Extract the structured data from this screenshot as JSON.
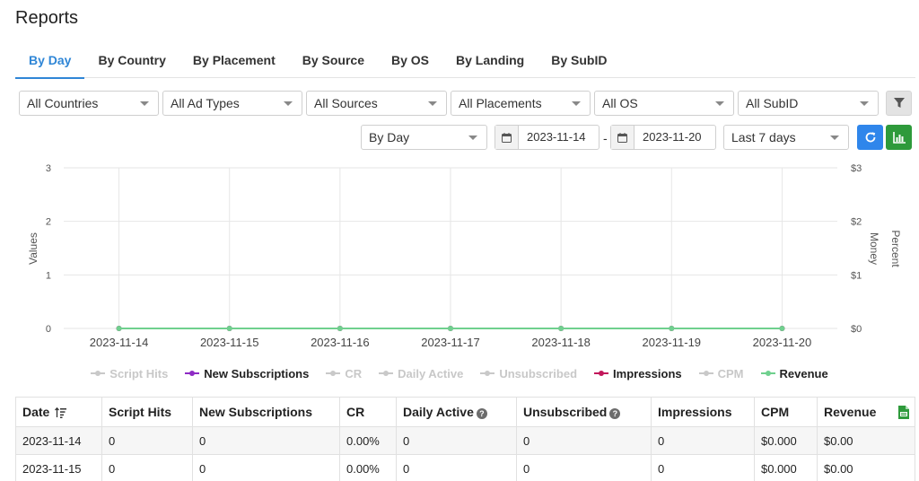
{
  "page": {
    "title": "Reports"
  },
  "tabs": [
    "By Day",
    "By Country",
    "By Placement",
    "By Source",
    "By OS",
    "By Landing",
    "By SubID"
  ],
  "active_tab": 0,
  "filters": {
    "countries": "All Countries",
    "ad_types": "All Ad Types",
    "sources": "All Sources",
    "placements": "All Placements",
    "os": "All OS",
    "subid": "All SubID"
  },
  "controls": {
    "group_by": "By Day",
    "date_from": "2023-11-14",
    "date_separator": "-",
    "date_to": "2023-11-20",
    "range": "Last 7 days"
  },
  "chart_data": {
    "type": "line",
    "categories": [
      "2023-11-14",
      "2023-11-15",
      "2023-11-16",
      "2023-11-17",
      "2023-11-18",
      "2023-11-19",
      "2023-11-20"
    ],
    "y_left": {
      "label": "Values",
      "ticks": [
        "3",
        "2",
        "1",
        "0"
      ],
      "range": [
        0,
        3
      ]
    },
    "y_right_money": {
      "label": "Money",
      "ticks": [
        "$3",
        "$2",
        "$1",
        "$0"
      ],
      "range": [
        0,
        3
      ]
    },
    "y_right_percent": {
      "label": "Percent"
    },
    "grid": true,
    "legend_position": "bottom",
    "series": [
      {
        "name": "Script Hits",
        "color": "#c9c9c9",
        "visible": false,
        "values": [
          0,
          0,
          0,
          0,
          0,
          0,
          0
        ]
      },
      {
        "name": "New Subscriptions",
        "color": "#8e2bc4",
        "visible": true,
        "values": [
          0,
          0,
          0,
          0,
          0,
          0,
          0
        ]
      },
      {
        "name": "CR",
        "color": "#c9c9c9",
        "visible": false,
        "values": [
          0,
          0,
          0,
          0,
          0,
          0,
          0
        ]
      },
      {
        "name": "Daily Active",
        "color": "#c9c9c9",
        "visible": false,
        "values": [
          0,
          0,
          0,
          0,
          0,
          0,
          0
        ]
      },
      {
        "name": "Unsubscribed",
        "color": "#c9c9c9",
        "visible": false,
        "values": [
          0,
          0,
          0,
          0,
          0,
          0,
          0
        ]
      },
      {
        "name": "Impressions",
        "color": "#c2185b",
        "visible": true,
        "values": [
          0,
          0,
          0,
          0,
          0,
          0,
          0
        ]
      },
      {
        "name": "CPM",
        "color": "#c9c9c9",
        "visible": false,
        "values": [
          0,
          0,
          0,
          0,
          0,
          0,
          0
        ]
      },
      {
        "name": "Revenue",
        "color": "#6fd08e",
        "visible": true,
        "values": [
          0,
          0,
          0,
          0,
          0,
          0,
          0
        ]
      }
    ]
  },
  "table": {
    "columns": [
      "Date",
      "Script Hits",
      "New Subscriptions",
      "CR",
      "Daily Active",
      "Unsubscribed",
      "Impressions",
      "CPM",
      "Revenue"
    ],
    "rows": [
      [
        "2023-11-14",
        "0",
        "0",
        "0.00%",
        "0",
        "0",
        "0",
        "$0.000",
        "$0.00"
      ],
      [
        "2023-11-15",
        "0",
        "0",
        "0.00%",
        "0",
        "0",
        "0",
        "$0.000",
        "$0.00"
      ]
    ]
  },
  "icons": {
    "filter": "filter-icon",
    "calendar": "calendar-icon",
    "refresh": "refresh-icon",
    "chart": "bar-chart-icon",
    "sort": "sort-icon",
    "help": "help-icon",
    "export": "csv-export-icon"
  },
  "colors": {
    "accent": "#2f86d6",
    "refresh_button": "#2f86eb",
    "chart_button": "#2e9a3b"
  }
}
